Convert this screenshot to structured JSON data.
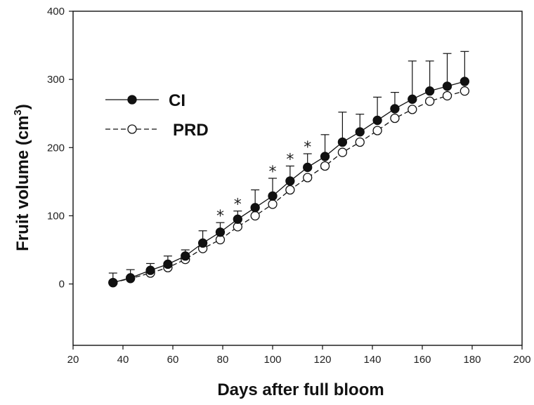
{
  "chart_data": {
    "type": "line",
    "title": "",
    "xlabel": "Days after full bloom",
    "ylabel_main": "Fruit volume (cm",
    "ylabel_sup": "3",
    "ylabel_close": ")",
    "xlim": [
      20,
      200
    ],
    "ylim": [
      -90,
      400
    ],
    "xticks": [
      20,
      40,
      60,
      80,
      100,
      120,
      140,
      160,
      180,
      200
    ],
    "yticks": [
      0,
      100,
      200,
      300,
      400
    ],
    "grid": false,
    "legend_position": "upper-left",
    "x": [
      36,
      43,
      51,
      58,
      65,
      72,
      79,
      86,
      93,
      100,
      107,
      114,
      121,
      128,
      135,
      142,
      149,
      156,
      163,
      170,
      177
    ],
    "series": [
      {
        "name": "CI",
        "marker": "filled-circle",
        "line": "solid",
        "color": "#111111",
        "values": [
          2,
          9,
          20,
          29,
          41,
          60,
          76,
          95,
          112,
          129,
          151,
          171,
          187,
          208,
          223,
          240,
          257,
          271,
          283,
          290,
          297
        ],
        "errors": [
          14,
          12,
          10,
          12,
          9,
          18,
          14,
          12,
          26,
          26,
          22,
          20,
          32,
          44,
          26,
          34,
          24,
          56,
          44,
          48,
          44
        ]
      },
      {
        "name": "PRD",
        "marker": "open-circle",
        "line": "dashed",
        "color": "#111111",
        "values": [
          2,
          8,
          16,
          24,
          36,
          52,
          65,
          84,
          100,
          117,
          138,
          156,
          173,
          193,
          208,
          225,
          243,
          256,
          268,
          276,
          283
        ],
        "errors": []
      }
    ],
    "annotations": [
      {
        "text": "*",
        "x": 79
      },
      {
        "text": "*",
        "x": 86
      },
      {
        "text": "*",
        "x": 100
      },
      {
        "text": "*",
        "x": 107
      },
      {
        "text": "*",
        "x": 114
      }
    ]
  }
}
